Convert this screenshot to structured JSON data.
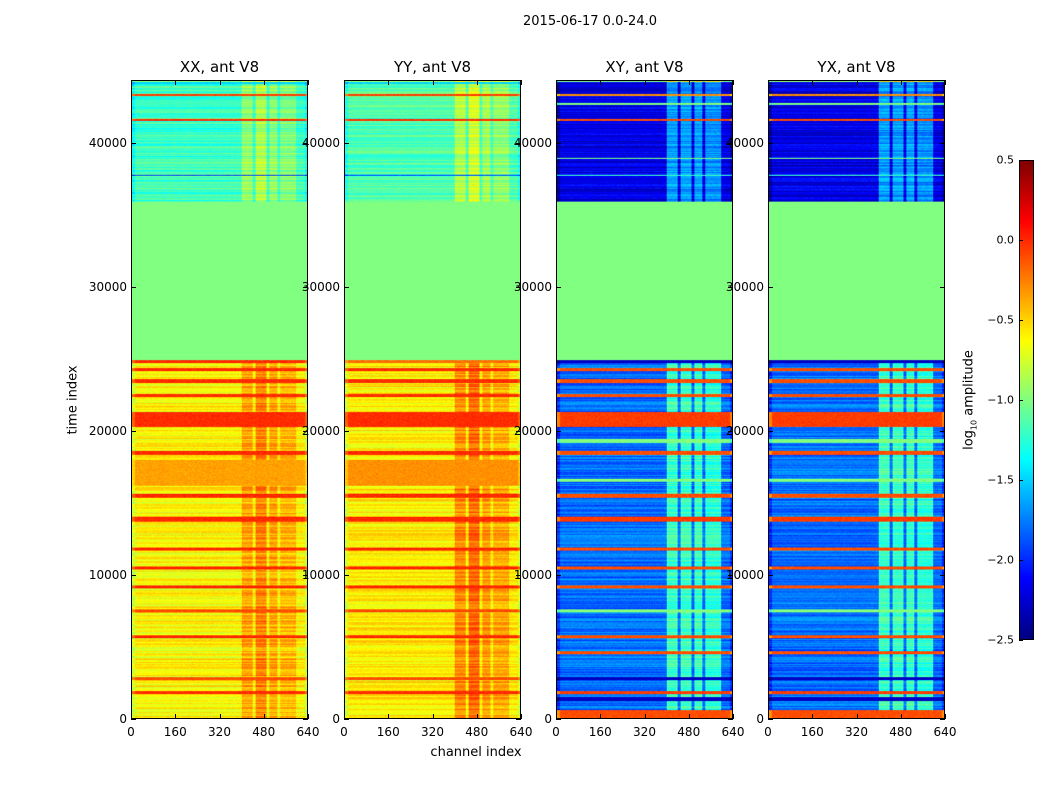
{
  "title": "2015-06-17 0.0-24.0",
  "chart_data": {
    "type": "heatmap",
    "suptitle": "2015-06-17 0.0-24.0",
    "xlabel": "channel index",
    "ylabel": "time index",
    "xlim": [
      0,
      640
    ],
    "ylim": [
      0,
      44400
    ],
    "xticks": [
      "0",
      "160",
      "320",
      "480",
      "640"
    ],
    "yticks": [
      "0",
      "10000",
      "20000",
      "30000",
      "40000"
    ],
    "colorbar": {
      "label": "log10 amplitude",
      "label_main": "log",
      "label_sub": "10",
      "label_rest": " amplitude",
      "range": [
        -2.5,
        0.5
      ],
      "ticks": [
        "0.5",
        "0.0",
        "−0.5",
        "−1.0",
        "−1.5",
        "−2.0",
        "−2.5"
      ],
      "colormap": "jet"
    },
    "panels": [
      {
        "title": "XX, ant V8",
        "kind": "parallel",
        "bands": [
          [
            0,
            25000,
            -0.62
          ],
          [
            25000,
            36000,
            -1.0
          ],
          [
            36000,
            44400,
            -1.2
          ]
        ],
        "stripes": [
          [
            1700,
            1900,
            0.0
          ],
          [
            2700,
            2900,
            -0.1
          ],
          [
            5600,
            5800,
            0.0
          ],
          [
            7400,
            7600,
            -0.1
          ],
          [
            9100,
            9300,
            0.0
          ],
          [
            10400,
            10600,
            0.0
          ],
          [
            11700,
            11950,
            0.0
          ],
          [
            13700,
            14100,
            0.0
          ],
          [
            15400,
            15650,
            0.0
          ],
          [
            16200,
            18000,
            -0.35
          ],
          [
            18400,
            18650,
            0.0
          ],
          [
            20300,
            21400,
            0.0
          ],
          [
            22400,
            22650,
            0.0
          ],
          [
            23400,
            23650,
            0.0
          ],
          [
            24200,
            24400,
            0.0
          ],
          [
            24800,
            25000,
            0.0
          ],
          [
            37800,
            37900,
            -1.9
          ],
          [
            35950,
            36050,
            -2.4
          ],
          [
            41650,
            41800,
            0.0
          ],
          [
            43400,
            43550,
            -0.05
          ],
          [
            44200,
            44400,
            -1.5
          ]
        ],
        "channel_boost": [
          [
            400,
            440,
            0.25
          ],
          [
            450,
            490,
            0.35
          ],
          [
            500,
            530,
            0.25
          ],
          [
            540,
            600,
            0.2
          ]
        ]
      },
      {
        "title": "YY, ant V8",
        "kind": "parallel",
        "bands": [
          [
            0,
            25000,
            -0.58
          ],
          [
            25000,
            36000,
            -1.0
          ],
          [
            36000,
            44400,
            -1.15
          ]
        ],
        "stripes": [
          [
            1700,
            1900,
            0.0
          ],
          [
            2700,
            2900,
            -0.1
          ],
          [
            5600,
            5800,
            0.0
          ],
          [
            7400,
            7600,
            -0.1
          ],
          [
            9100,
            9300,
            0.0
          ],
          [
            10400,
            10600,
            0.0
          ],
          [
            11700,
            11950,
            0.0
          ],
          [
            13700,
            14100,
            0.0
          ],
          [
            15400,
            15650,
            0.0
          ],
          [
            16200,
            18000,
            -0.3
          ],
          [
            18400,
            18650,
            0.0
          ],
          [
            20300,
            21400,
            0.0
          ],
          [
            22400,
            22650,
            0.0
          ],
          [
            23400,
            23650,
            0.0
          ],
          [
            24200,
            24400,
            0.0
          ],
          [
            24800,
            25000,
            -0.2
          ],
          [
            37800,
            37900,
            -1.9
          ],
          [
            35950,
            36050,
            -2.4
          ],
          [
            41650,
            41800,
            0.0
          ],
          [
            43400,
            43550,
            -0.05
          ],
          [
            44200,
            44400,
            -1.5
          ]
        ],
        "channel_boost": [
          [
            400,
            440,
            0.3
          ],
          [
            450,
            490,
            0.4
          ],
          [
            500,
            530,
            0.25
          ],
          [
            540,
            600,
            0.2
          ]
        ]
      },
      {
        "title": "XY, ant V8",
        "kind": "cross",
        "bands": [
          [
            0,
            25000,
            -1.8
          ],
          [
            25000,
            36000,
            -1.0
          ],
          [
            36000,
            44400,
            -2.2
          ]
        ],
        "stripes": [
          [
            0,
            600,
            -0.1
          ],
          [
            1200,
            1500,
            -2.3
          ],
          [
            1700,
            1900,
            -0.05
          ],
          [
            2700,
            2900,
            -2.3
          ],
          [
            4500,
            4700,
            -0.1
          ],
          [
            5600,
            5800,
            -0.1
          ],
          [
            7400,
            7600,
            -1.0
          ],
          [
            9100,
            9300,
            -0.1
          ],
          [
            10400,
            10600,
            -0.1
          ],
          [
            11700,
            11950,
            -0.1
          ],
          [
            13700,
            14100,
            -0.05
          ],
          [
            15400,
            15650,
            -0.1
          ],
          [
            16500,
            16700,
            -1.0
          ],
          [
            18400,
            18650,
            -0.1
          ],
          [
            19200,
            19500,
            -1.0
          ],
          [
            20300,
            21400,
            -0.05
          ],
          [
            22400,
            22650,
            -0.1
          ],
          [
            23400,
            23650,
            -0.1
          ],
          [
            24200,
            24400,
            -0.1
          ],
          [
            24800,
            25000,
            -2.3
          ],
          [
            37800,
            37900,
            -1.2
          ],
          [
            39000,
            39100,
            -1.0
          ],
          [
            41650,
            41800,
            -0.1
          ],
          [
            42800,
            42900,
            -1.0
          ],
          [
            43400,
            43550,
            -0.3
          ]
        ],
        "channel_boost": [
          [
            400,
            440,
            0.6
          ],
          [
            450,
            490,
            0.6
          ],
          [
            500,
            530,
            0.6
          ],
          [
            540,
            600,
            0.55
          ]
        ]
      },
      {
        "title": "YX, ant V8",
        "kind": "cross",
        "bands": [
          [
            0,
            25000,
            -1.8
          ],
          [
            25000,
            36000,
            -1.0
          ],
          [
            36000,
            44400,
            -2.2
          ]
        ],
        "stripes": [
          [
            0,
            600,
            -0.1
          ],
          [
            1200,
            1500,
            -2.3
          ],
          [
            1700,
            1900,
            -0.05
          ],
          [
            2700,
            2900,
            -2.3
          ],
          [
            4500,
            4700,
            -0.1
          ],
          [
            5600,
            5800,
            -0.1
          ],
          [
            7400,
            7600,
            -1.0
          ],
          [
            9100,
            9300,
            -0.1
          ],
          [
            10400,
            10600,
            -0.1
          ],
          [
            11700,
            11950,
            -0.1
          ],
          [
            13700,
            14100,
            -0.05
          ],
          [
            15400,
            15650,
            -0.1
          ],
          [
            16500,
            16700,
            -1.0
          ],
          [
            18400,
            18650,
            -0.1
          ],
          [
            19200,
            19500,
            -1.0
          ],
          [
            20300,
            21400,
            -0.05
          ],
          [
            22400,
            22650,
            -0.1
          ],
          [
            23400,
            23650,
            -0.1
          ],
          [
            24200,
            24400,
            -0.1
          ],
          [
            24800,
            25000,
            -2.3
          ],
          [
            37800,
            37900,
            -1.2
          ],
          [
            39000,
            39100,
            -1.0
          ],
          [
            41650,
            41800,
            -0.1
          ],
          [
            42800,
            42900,
            -1.0
          ],
          [
            43400,
            43550,
            -0.3
          ]
        ],
        "channel_boost": [
          [
            400,
            440,
            0.6
          ],
          [
            450,
            490,
            0.6
          ],
          [
            500,
            530,
            0.6
          ],
          [
            540,
            600,
            0.55
          ]
        ]
      }
    ]
  }
}
